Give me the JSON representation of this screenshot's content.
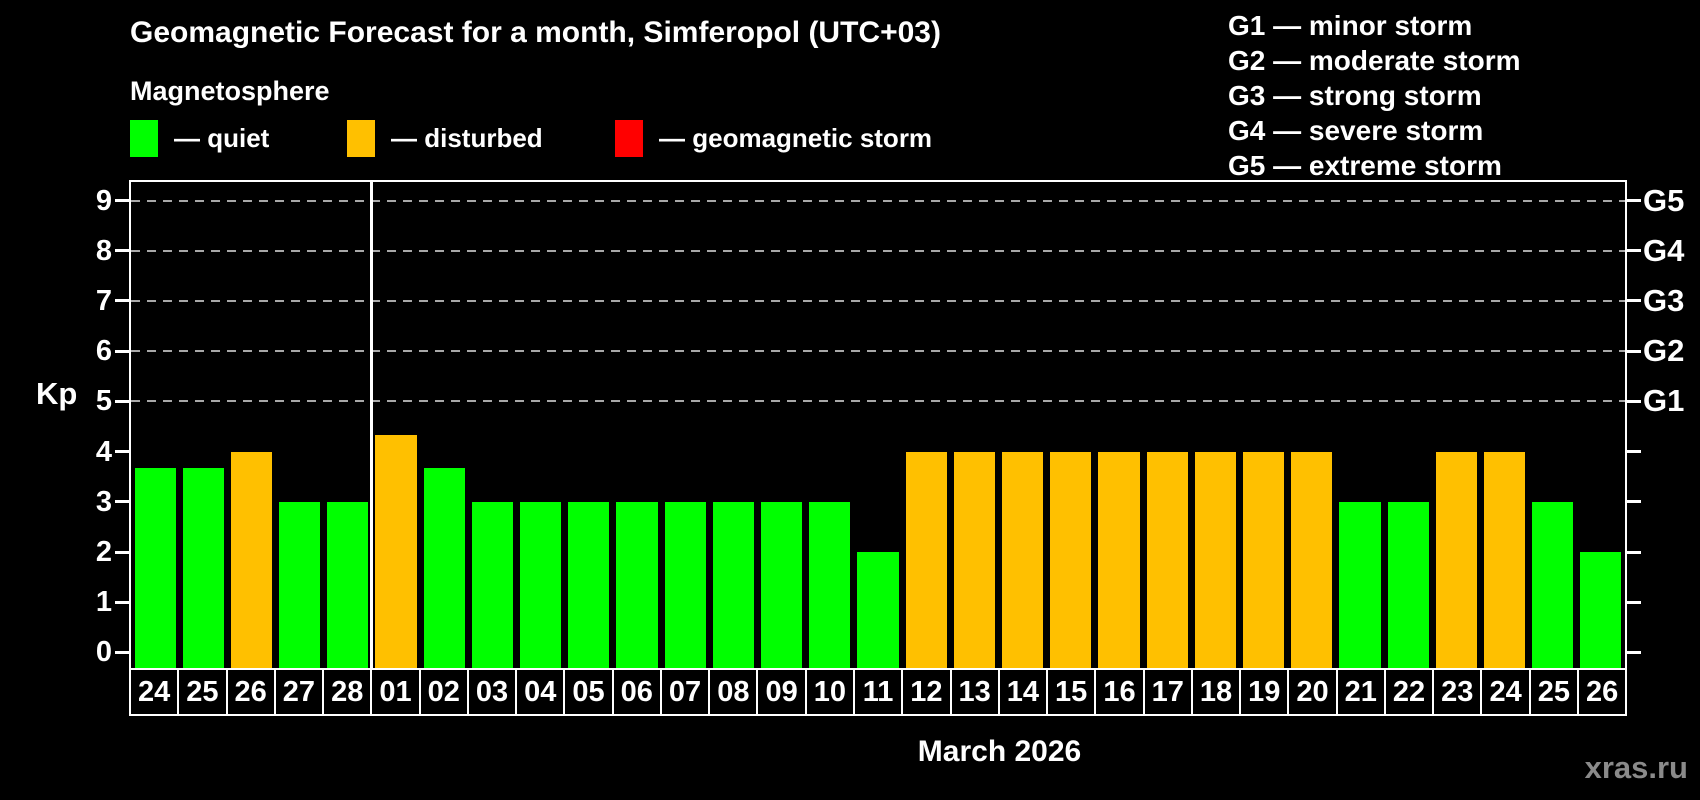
{
  "title": "Geomagnetic Forecast for a month, Simferopol (UTC+03)",
  "subtitle": "Magnetosphere",
  "legend": [
    {
      "key": "quiet",
      "label": "— quiet",
      "color": "#00ff00"
    },
    {
      "key": "disturbed",
      "label": "— disturbed",
      "color": "#ffc000"
    },
    {
      "key": "storm",
      "label": "— geomagnetic storm",
      "color": "#ff0000"
    }
  ],
  "storm_scale": [
    "G1 — minor storm",
    "G2 — moderate storm",
    "G3 — strong storm",
    "G4 — severe storm",
    "G5 — extreme storm"
  ],
  "watermark": "xras.ru",
  "chart_data": {
    "type": "bar",
    "title": "Geomagnetic Forecast for a month, Simferopol (UTC+03)",
    "ylabel": "Kp",
    "xlabel": "March 2026",
    "ylim": [
      0,
      9
    ],
    "yticks": [
      0,
      1,
      2,
      3,
      4,
      5,
      6,
      7,
      8,
      9
    ],
    "gridlines": [
      5,
      6,
      7,
      8,
      9
    ],
    "right_axis": [
      {
        "value": 5,
        "label": "G1"
      },
      {
        "value": 6,
        "label": "G2"
      },
      {
        "value": 7,
        "label": "G3"
      },
      {
        "value": 8,
        "label": "G4"
      },
      {
        "value": 9,
        "label": "G5"
      }
    ],
    "legend_position": "top",
    "grid": true,
    "month_separator_after_index": 4,
    "categories": [
      "24",
      "25",
      "26",
      "27",
      "28",
      "01",
      "02",
      "03",
      "04",
      "05",
      "06",
      "07",
      "08",
      "09",
      "10",
      "11",
      "12",
      "13",
      "14",
      "15",
      "16",
      "17",
      "18",
      "19",
      "20",
      "21",
      "22",
      "23",
      "24",
      "25",
      "26"
    ],
    "values": [
      3.67,
      3.67,
      4,
      3,
      3,
      4.33,
      3.67,
      3,
      3,
      3,
      3,
      3,
      3,
      3,
      3,
      2,
      4,
      4,
      4,
      4,
      4,
      4,
      4,
      4,
      4,
      3,
      3,
      4,
      4,
      3,
      2
    ],
    "statuses": [
      "quiet",
      "quiet",
      "disturbed",
      "quiet",
      "quiet",
      "disturbed",
      "quiet",
      "quiet",
      "quiet",
      "quiet",
      "quiet",
      "quiet",
      "quiet",
      "quiet",
      "quiet",
      "quiet",
      "disturbed",
      "disturbed",
      "disturbed",
      "disturbed",
      "disturbed",
      "disturbed",
      "disturbed",
      "disturbed",
      "disturbed",
      "quiet",
      "quiet",
      "disturbed",
      "disturbed",
      "quiet",
      "quiet"
    ],
    "colors": {
      "quiet": "#00ff00",
      "disturbed": "#ffc000",
      "storm": "#ff0000"
    }
  }
}
